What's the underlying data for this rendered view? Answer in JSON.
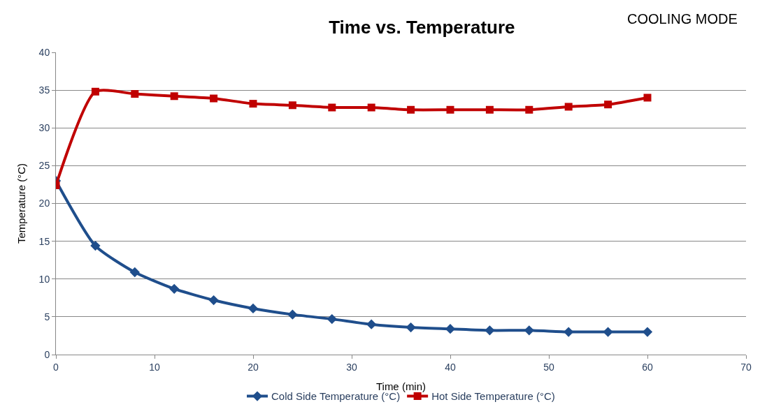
{
  "chart_data": {
    "type": "line",
    "title": "Time vs. Temperature",
    "subtitle": "COOLING MODE",
    "xlabel": "Time (min)",
    "ylabel": "Temperature (°C)",
    "x": [
      0,
      4,
      8,
      12,
      16,
      20,
      24,
      28,
      32,
      36,
      40,
      44,
      48,
      52,
      56,
      60
    ],
    "series": [
      {
        "name": "Cold Side Temperature (°C)",
        "color": "#1f4e8c",
        "marker": "diamond",
        "values": [
          23.0,
          14.4,
          10.9,
          8.7,
          7.2,
          6.1,
          5.3,
          4.7,
          4.0,
          3.6,
          3.4,
          3.2,
          3.2,
          3.0,
          3.0,
          3.0
        ]
      },
      {
        "name": "Hot Side Temperature (°C)",
        "color": "#c00000",
        "marker": "square",
        "values": [
          22.4,
          34.8,
          34.5,
          34.2,
          33.9,
          33.2,
          33.0,
          32.7,
          32.7,
          32.4,
          32.4,
          32.4,
          32.4,
          32.8,
          33.1,
          34.0
        ]
      }
    ],
    "xlim": [
      0,
      70
    ],
    "xticks": [
      0,
      10,
      20,
      30,
      40,
      50,
      60,
      70
    ],
    "ylim": [
      0,
      40
    ],
    "yticks": [
      0,
      5,
      10,
      15,
      20,
      25,
      30,
      35,
      40
    ],
    "grid": "y",
    "legend": "bottom",
    "line_style": "solid"
  }
}
